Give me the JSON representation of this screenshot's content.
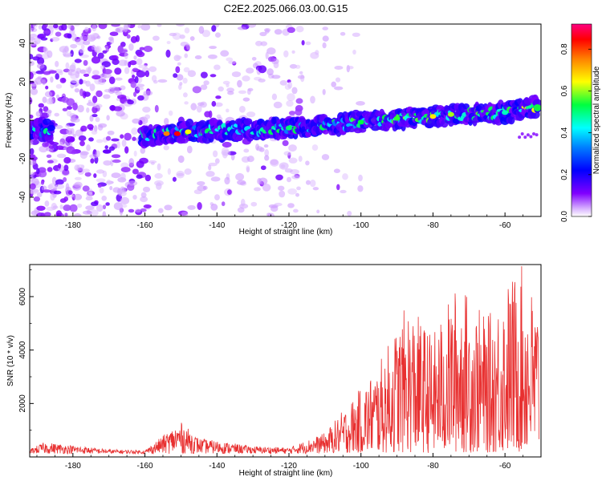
{
  "title": "C2E2.2025.066.03.00.G15",
  "chart_data": [
    {
      "type": "heatmap",
      "name": "spectrogram",
      "xlabel": "Height of straight line (km)",
      "ylabel": "Frequency (Hz)",
      "xlim": [
        -192,
        -50
      ],
      "ylim": [
        -50,
        50
      ],
      "xticks": [
        -180,
        -160,
        -140,
        -120,
        -100,
        -80,
        -60
      ],
      "yticks": [
        -40,
        -20,
        0,
        20,
        40
      ],
      "colorbar": {
        "label": "Normalized spectral amplitude",
        "range": [
          0.0,
          0.92
        ],
        "ticks": [
          0.0,
          0.2,
          0.4,
          0.6,
          0.8
        ],
        "colormap": [
          "#ffffff",
          "#cc99ff",
          "#8000ff",
          "#0000ff",
          "#00ffff",
          "#00ff00",
          "#ffff00",
          "#ff8000",
          "#ff0000",
          "#ff0080"
        ]
      },
      "signal_band": {
        "description_points": [
          {
            "height_km": -192,
            "freq_hz": -5
          },
          {
            "height_km": -186,
            "freq_hz": -5
          },
          {
            "height_km": -160,
            "freq_hz": -8
          },
          {
            "height_km": -150,
            "freq_hz": -6
          },
          {
            "height_km": -120,
            "freq_hz": -4
          },
          {
            "height_km": -100,
            "freq_hz": -1
          },
          {
            "height_km": -80,
            "freq_hz": 2
          },
          {
            "height_km": -60,
            "freq_hz": 4
          },
          {
            "height_km": -51,
            "freq_hz": 7
          }
        ]
      }
    },
    {
      "type": "line",
      "name": "snr",
      "xlabel": "Height of straight line (km)",
      "ylabel": "SNR (10 * v/v)",
      "xlim": [
        -192,
        -50
      ],
      "ylim": [
        0,
        7200
      ],
      "xticks": [
        -180,
        -160,
        -140,
        -120,
        -100,
        -80,
        -60
      ],
      "yticks": [
        2000,
        4000,
        6000
      ],
      "color": "#e83030",
      "envelope": [
        {
          "height_km": -192,
          "snr": 300
        },
        {
          "height_km": -188,
          "snr": 550
        },
        {
          "height_km": -170,
          "snr": 280
        },
        {
          "height_km": -160,
          "snr": 250
        },
        {
          "height_km": -155,
          "snr": 800
        },
        {
          "height_km": -150,
          "snr": 1300
        },
        {
          "height_km": -145,
          "snr": 700
        },
        {
          "height_km": -130,
          "snr": 400
        },
        {
          "height_km": -120,
          "snr": 350
        },
        {
          "height_km": -110,
          "snr": 900
        },
        {
          "height_km": -100,
          "snr": 2600
        },
        {
          "height_km": -95,
          "snr": 3500
        },
        {
          "height_km": -87,
          "snr": 5800
        },
        {
          "height_km": -80,
          "snr": 4600
        },
        {
          "height_km": -73,
          "snr": 6600
        },
        {
          "height_km": -65,
          "snr": 5200
        },
        {
          "height_km": -59,
          "snr": 6700
        },
        {
          "height_km": -55,
          "snr": 7200
        },
        {
          "height_km": -51,
          "snr": 5800
        }
      ]
    }
  ]
}
